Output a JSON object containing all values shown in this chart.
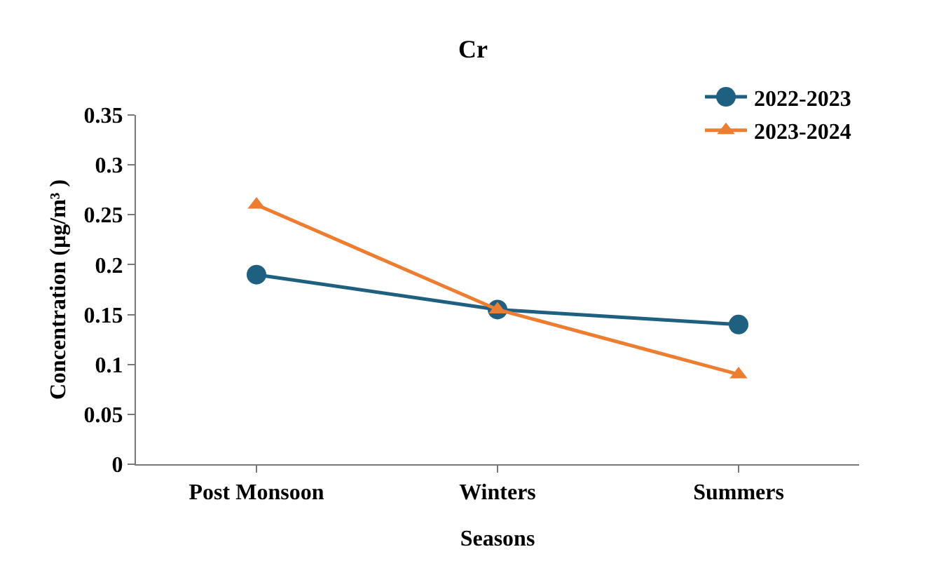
{
  "chart_data": {
    "type": "line",
    "title": "Cr",
    "xlabel": "Seasons",
    "ylabel": "Concentration (µg/m³ )",
    "categories": [
      "Post Monsoon",
      "Winters",
      "Summers"
    ],
    "series": [
      {
        "name": "2022-2023",
        "color": "#1f5f7f",
        "values": [
          0.19,
          0.155,
          0.14
        ],
        "marker": "circle"
      },
      {
        "name": "2023-2024",
        "color": "#ed7d31",
        "values": [
          0.26,
          0.155,
          0.09
        ],
        "marker": "triangle"
      }
    ],
    "ylim": [
      0,
      0.35
    ],
    "yticks": [
      0,
      0.05,
      0.1,
      0.15,
      0.2,
      0.25,
      0.3,
      0.35
    ],
    "grid": false,
    "legend": "top right",
    "line_style": "solid"
  }
}
